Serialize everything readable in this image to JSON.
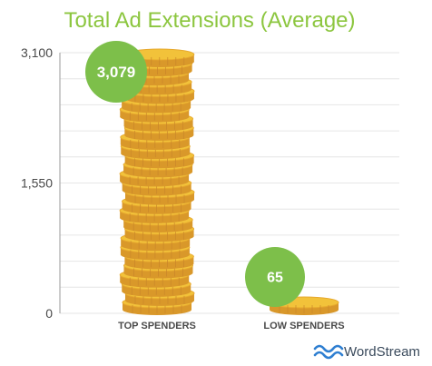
{
  "chart_data": {
    "type": "bar",
    "title": "Total Ad Extensions (Average)",
    "categories": [
      "TOP SPENDERS",
      "LOW SPENDERS"
    ],
    "values": [
      3079,
      65
    ],
    "value_labels": [
      "3,079",
      "65"
    ],
    "ylim": [
      0,
      3100
    ],
    "yticks": [
      0,
      1550,
      3100
    ],
    "ytick_labels": [
      "0",
      "1,550",
      "3,100"
    ],
    "xlabel": "",
    "ylabel": "",
    "grid": true,
    "bar_style": "stacked gold coins"
  },
  "brand": {
    "name": "WordStream"
  },
  "colors": {
    "title": "#8cc63f",
    "badge": "#7dbf4a",
    "coin_face": "#f2c23a",
    "coin_edge": "#d9982a",
    "grid": "#e6e6e6",
    "axis": "#9a9a9a",
    "brand_icon": "#2f7fd1"
  }
}
